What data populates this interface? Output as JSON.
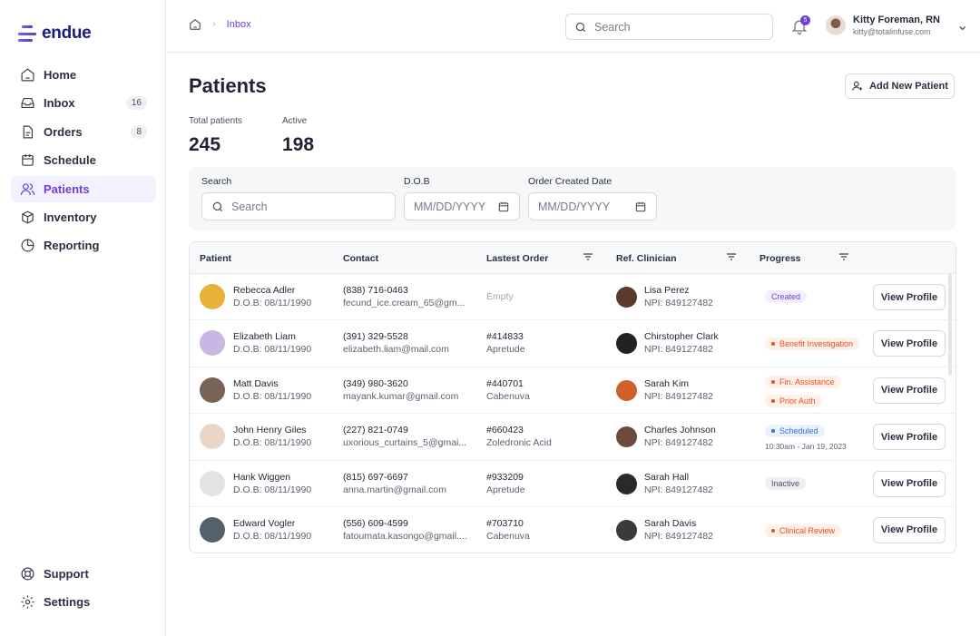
{
  "brand": {
    "name": "endue"
  },
  "sidebar": {
    "items": [
      {
        "label": "Home",
        "icon": "home-icon"
      },
      {
        "label": "Inbox",
        "icon": "inbox-icon",
        "badge": "16"
      },
      {
        "label": "Orders",
        "icon": "file-icon",
        "badge": "8"
      },
      {
        "label": "Schedule",
        "icon": "calendar-icon"
      },
      {
        "label": "Patients",
        "icon": "users-icon",
        "active": true
      },
      {
        "label": "Inventory",
        "icon": "box-icon"
      },
      {
        "label": "Reporting",
        "icon": "pie-chart-icon"
      }
    ],
    "bottom": [
      {
        "label": "Support",
        "icon": "lifebuoy-icon"
      },
      {
        "label": "Settings",
        "icon": "gear-icon"
      }
    ]
  },
  "header": {
    "breadcrumb": "Inbox",
    "search_placeholder": "Search",
    "notifications": "5",
    "user": {
      "name": "Kitty Foreman, RN",
      "email": "kitty@totalinfuse.com"
    }
  },
  "page": {
    "title": "Patients",
    "add_button": "Add New Patient",
    "stats": [
      {
        "label": "Total patients",
        "value": "245"
      },
      {
        "label": "Active",
        "value": "198"
      }
    ]
  },
  "filters": {
    "search_label": "Search",
    "search_placeholder": "Search",
    "dob_label": "D.O.B",
    "dob_placeholder": "MM/DD/YYYY",
    "order_label": "Order Created Date",
    "order_placeholder": "MM/DD/YYYY"
  },
  "table": {
    "columns": [
      "Patient",
      "Contact",
      "Lastest Order",
      "Ref. Clinician",
      "Progress"
    ],
    "view_label": "View Profile",
    "rows": [
      {
        "name": "Rebecca Adler",
        "dob": "D.O.B: 08/11/1990",
        "phone": "(838) 716-0463",
        "email": "fecund_ice.cream_65@gm...",
        "order": "",
        "drug": "",
        "empty": "Empty",
        "clinician": "Lisa Perez",
        "npi": "NPI: 849127482",
        "status": [
          {
            "label": "Created",
            "kind": "purple"
          }
        ]
      },
      {
        "name": "Elizabeth Liam",
        "dob": "D.O.B: 08/11/1990",
        "phone": "(391) 329-5528",
        "email": "elizabeth.liam@mail.com",
        "order": "#414833",
        "drug": "Apretude",
        "clinician": "Chirstopher Clark",
        "npi": "NPI: 849127482",
        "status": [
          {
            "label": "Benefit Investigation",
            "kind": "orange"
          }
        ]
      },
      {
        "name": "Matt Davis",
        "dob": "D.O.B: 08/11/1990",
        "phone": "(349) 980-3620",
        "email": "mayank.kumar@gmail.com",
        "order": "#440701",
        "drug": "Cabenuva",
        "clinician": "Sarah Kim",
        "npi": "NPI: 849127482",
        "status": [
          {
            "label": "Fin. Assistance",
            "kind": "orange"
          },
          {
            "label": "Prior Auth",
            "kind": "orange"
          }
        ]
      },
      {
        "name": "John Henry Giles",
        "dob": "D.O.B: 08/11/1990",
        "phone": "(227) 821-0749",
        "email": "uxorious_curtains_5@gmai...",
        "order": "#660423",
        "drug": "Zoledronic Acid",
        "clinician": "Charles Johnson",
        "npi": "NPI: 849127482",
        "status": [
          {
            "label": "Scheduled",
            "kind": "blue"
          }
        ],
        "note": "10:30am - Jan 19, 2023"
      },
      {
        "name": "Hank Wiggen",
        "dob": "D.O.B: 08/11/1990",
        "phone": "(815) 697-6697",
        "email": "anna.martin@gmail.com",
        "order": "#933209",
        "drug": "Apretude",
        "clinician": "Sarah Hall",
        "npi": "NPI: 849127482",
        "status": [
          {
            "label": "Inactive",
            "kind": "gray"
          }
        ]
      },
      {
        "name": "Edward Vogler",
        "dob": "D.O.B: 08/11/1990",
        "phone": "(556) 609-4599",
        "email": "fatoumata.kasongo@gmail....",
        "order": "#703710",
        "drug": "Cabenuva",
        "clinician": "Sarah Davis",
        "npi": "NPI: 849127482",
        "status": [
          {
            "label": "Clinical Review",
            "kind": "orange"
          }
        ]
      }
    ]
  },
  "colors": {
    "accent": "#6d3fdc",
    "purple_bg": "#f3effe",
    "orange": "#e0531f",
    "orange_bg": "#fff0e8",
    "blue": "#2f6fe0",
    "blue_bg": "#eaf2fe",
    "gray": "#4a5062",
    "gray_bg": "#eef0f3"
  }
}
